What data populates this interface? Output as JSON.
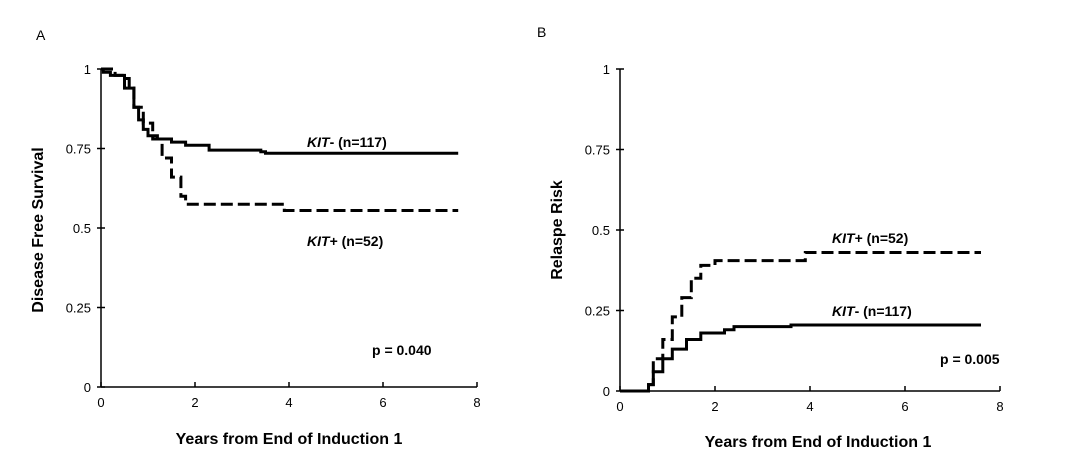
{
  "chart_data": [
    {
      "panel": "A",
      "type": "line",
      "xlabel": "Years from End of Induction 1",
      "ylabel": "Disease Free Survival",
      "xlim": [
        0,
        8
      ],
      "ylim": [
        0,
        1
      ],
      "x_ticks": [
        "0",
        "2",
        "4",
        "6",
        "8"
      ],
      "y_ticks": [
        "0",
        "0.25",
        "0.5",
        "0.75",
        "1"
      ],
      "pvalue": "p = 0.040",
      "series": [
        {
          "name": "KIT- (n=117)",
          "gene": "KIT",
          "group": "- (n=117)",
          "style": "solid",
          "points": [
            [
              0,
              1
            ],
            [
              0.05,
              0.99
            ],
            [
              0.2,
              0.98
            ],
            [
              0.5,
              0.97
            ],
            [
              0.6,
              0.94
            ],
            [
              0.7,
              0.88
            ],
            [
              0.8,
              0.84
            ],
            [
              0.9,
              0.81
            ],
            [
              1.0,
              0.79
            ],
            [
              1.2,
              0.78
            ],
            [
              1.5,
              0.77
            ],
            [
              1.8,
              0.76
            ],
            [
              2.2,
              0.76
            ],
            [
              2.3,
              0.745
            ],
            [
              3.4,
              0.74
            ],
            [
              3.5,
              0.735
            ],
            [
              7.6,
              0.735
            ]
          ]
        },
        {
          "name": "KIT+ (n=52)",
          "gene": "KIT",
          "group": "+ (n=52)",
          "style": "dashed",
          "points": [
            [
              0,
              1
            ],
            [
              0.3,
              0.98
            ],
            [
              0.5,
              0.94
            ],
            [
              0.7,
              0.88
            ],
            [
              0.9,
              0.83
            ],
            [
              1.1,
              0.78
            ],
            [
              1.3,
              0.72
            ],
            [
              1.5,
              0.66
            ],
            [
              1.7,
              0.6
            ],
            [
              1.8,
              0.575
            ],
            [
              3.8,
              0.575
            ],
            [
              3.9,
              0.555
            ],
            [
              7.6,
              0.555
            ]
          ]
        }
      ]
    },
    {
      "panel": "B",
      "type": "line",
      "xlabel": "Years from End of Induction 1",
      "ylabel": "Relaspe Risk",
      "xlim": [
        0,
        8
      ],
      "ylim": [
        0,
        1
      ],
      "x_ticks": [
        "0",
        "2",
        "4",
        "6",
        "8"
      ],
      "y_ticks": [
        "0",
        "0.25",
        "0.5",
        "0.75",
        "1"
      ],
      "pvalue": "p = 0.005",
      "series": [
        {
          "name": "KIT+ (n=52)",
          "gene": "KIT",
          "group": "+ (n=52)",
          "style": "dashed",
          "points": [
            [
              0,
              0
            ],
            [
              0.5,
              0
            ],
            [
              0.6,
              0.02
            ],
            [
              0.7,
              0.1
            ],
            [
              0.9,
              0.16
            ],
            [
              1.1,
              0.23
            ],
            [
              1.3,
              0.29
            ],
            [
              1.5,
              0.35
            ],
            [
              1.7,
              0.39
            ],
            [
              2.0,
              0.405
            ],
            [
              3.7,
              0.405
            ],
            [
              3.9,
              0.43
            ],
            [
              7.6,
              0.43
            ]
          ]
        },
        {
          "name": "KIT- (n=117)",
          "gene": "KIT",
          "group": "- (n=117)",
          "style": "solid",
          "points": [
            [
              0,
              0
            ],
            [
              0.5,
              0
            ],
            [
              0.6,
              0.02
            ],
            [
              0.7,
              0.06
            ],
            [
              0.9,
              0.1
            ],
            [
              1.1,
              0.13
            ],
            [
              1.4,
              0.16
            ],
            [
              1.7,
              0.18
            ],
            [
              2.2,
              0.19
            ],
            [
              2.4,
              0.2
            ],
            [
              3.5,
              0.2
            ],
            [
              3.6,
              0.205
            ],
            [
              7.6,
              0.205
            ]
          ]
        }
      ]
    }
  ]
}
